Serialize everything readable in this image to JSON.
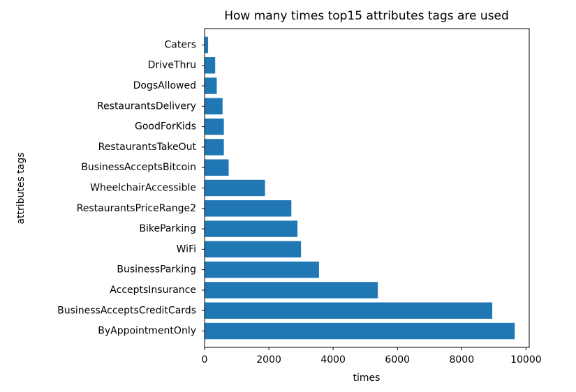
{
  "chart_data": {
    "type": "bar",
    "orientation": "horizontal",
    "title": "How many times top15 attributes tags are used",
    "xlabel": "times",
    "ylabel": "attributes tags",
    "categories": [
      "ByAppointmentOnly",
      "BusinessAcceptsCreditCards",
      "AcceptsInsurance",
      "BusinessParking",
      "WiFi",
      "BikeParking",
      "RestaurantsPriceRange2",
      "WheelchairAccessible",
      "BusinessAcceptsBitcoin",
      "RestaurantsTakeOut",
      "GoodForKids",
      "RestaurantsDelivery",
      "DogsAllowed",
      "DriveThru",
      "Caters"
    ],
    "values": [
      9650,
      8950,
      5390,
      3560,
      3000,
      2890,
      2700,
      1880,
      750,
      600,
      600,
      560,
      380,
      330,
      110
    ],
    "xlim": [
      0,
      10100
    ],
    "xticks": [
      0,
      2000,
      4000,
      6000,
      8000,
      10000
    ],
    "xtick_labels": [
      "0",
      "2000",
      "4000",
      "6000",
      "8000",
      "10000"
    ],
    "bar_color": "#1f77b4",
    "grid": false
  }
}
